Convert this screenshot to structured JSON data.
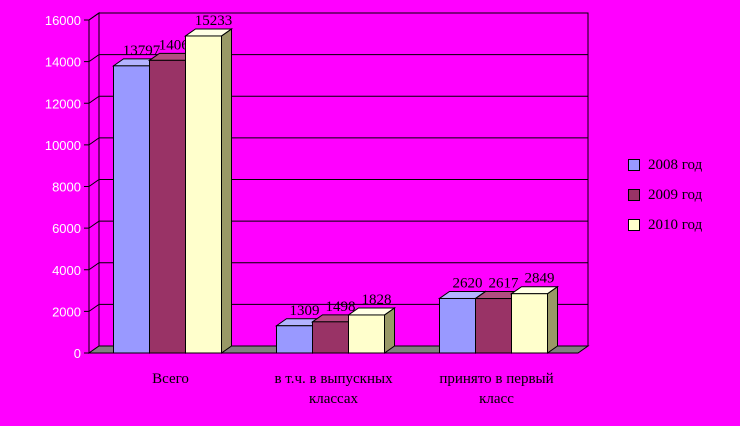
{
  "chart_data": {
    "type": "bar",
    "categories": [
      [
        "Всего"
      ],
      [
        "в т.ч. в выпускных",
        "классах"
      ],
      [
        "принято в первый",
        "класс"
      ]
    ],
    "series": [
      {
        "name": "2008 год",
        "values": [
          13797,
          1309,
          2620
        ],
        "color": "#9999ff",
        "side": "#6b6bcc",
        "top": "#b3b3ff"
      },
      {
        "name": "2009 год",
        "values": [
          14062,
          1498,
          2617
        ],
        "color": "#993366",
        "side": "#66223f",
        "top": "#b34d80"
      },
      {
        "name": "2010 год",
        "values": [
          15233,
          1828,
          2849
        ],
        "color": "#ffffcc",
        "side": "#999966",
        "top": "#ffffe6"
      }
    ],
    "yticks": [
      0,
      2000,
      4000,
      6000,
      8000,
      10000,
      12000,
      14000,
      16000
    ],
    "ylim": [
      0,
      16000
    ],
    "grid": true,
    "legend": "right"
  }
}
